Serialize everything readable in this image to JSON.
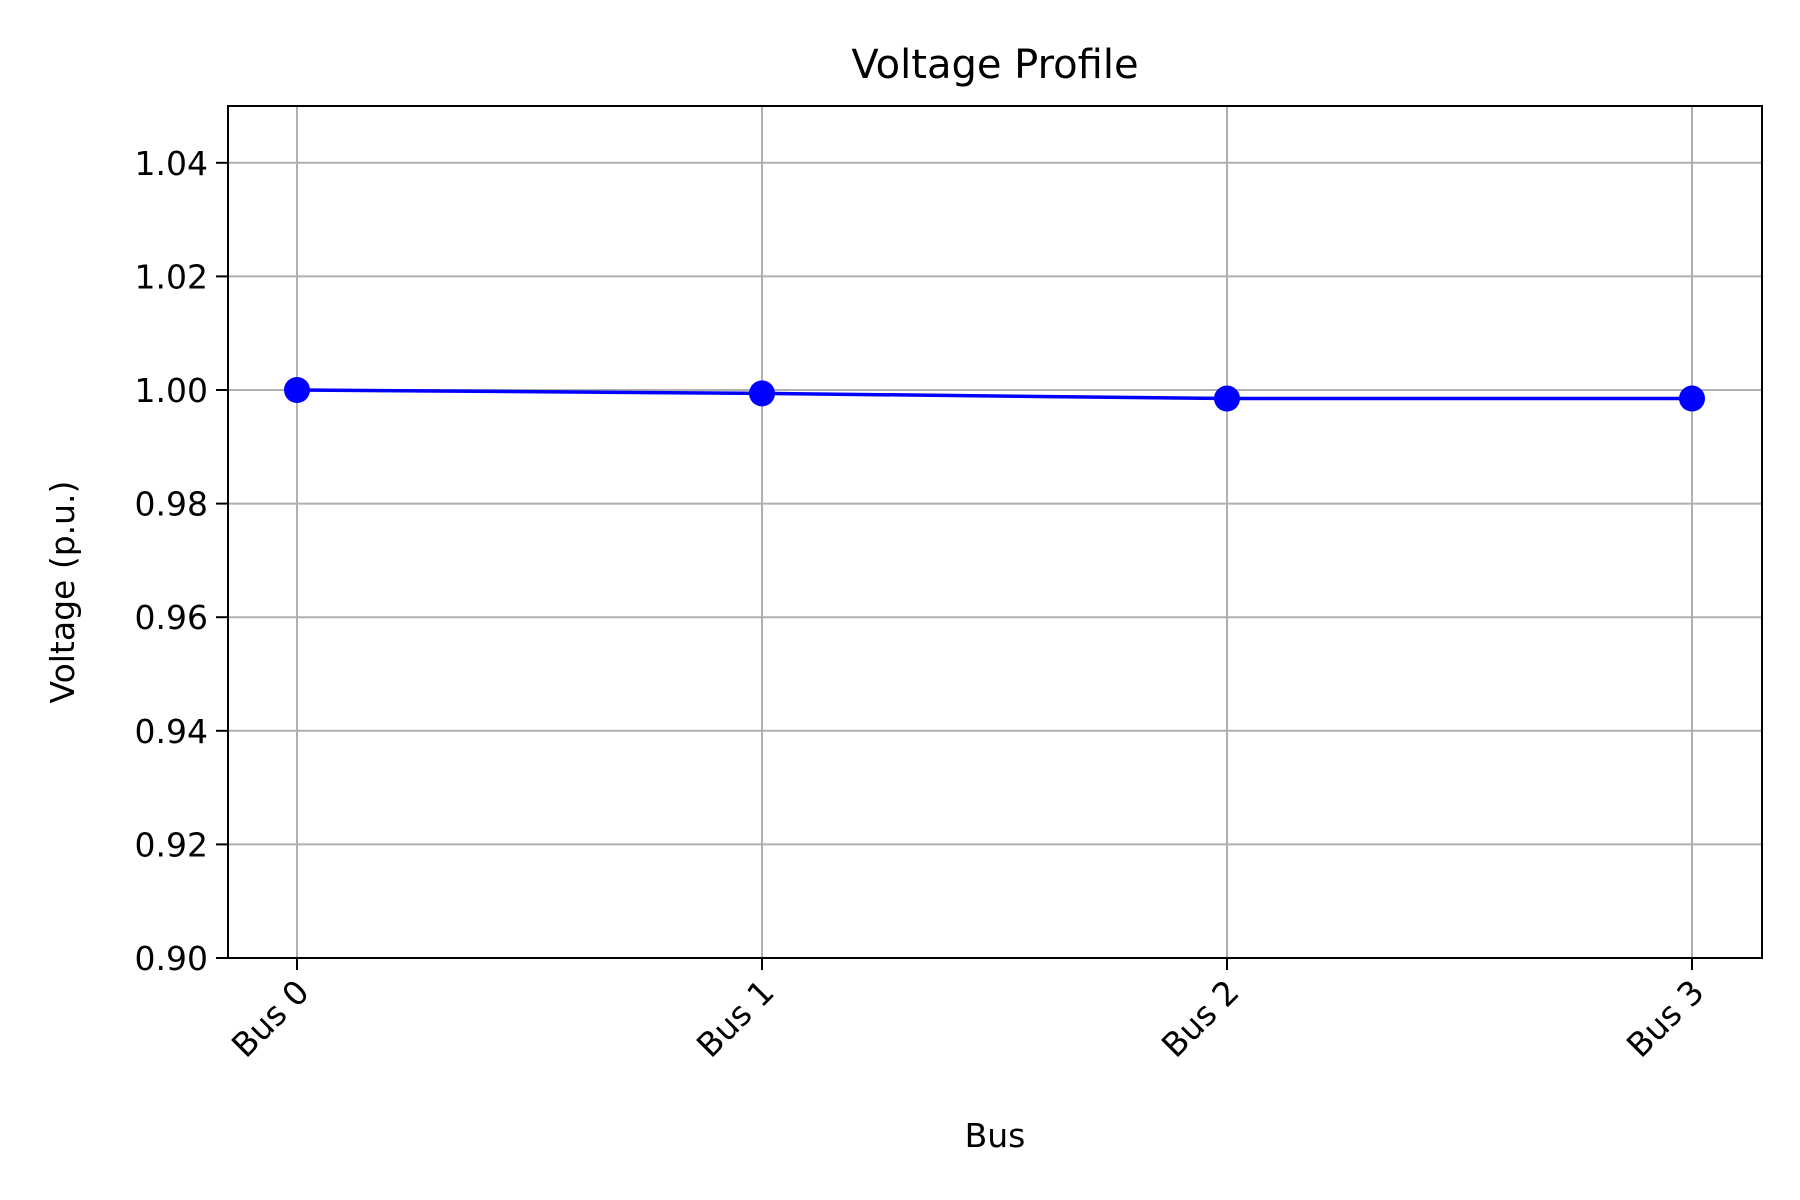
{
  "chart_data": {
    "type": "line",
    "title": "Voltage Profile",
    "xlabel": "Bus",
    "ylabel": "Voltage (p.u.)",
    "categories": [
      "Bus 0",
      "Bus 1",
      "Bus 2",
      "Bus 3"
    ],
    "series": [
      {
        "values": [
          1.0,
          0.9994,
          0.9985,
          0.9985
        ],
        "color": "#0000ff",
        "marker": "circle"
      }
    ],
    "ylim": [
      0.9,
      1.05
    ],
    "yticks": [
      "0.90",
      "0.92",
      "0.94",
      "0.96",
      "0.98",
      "1.00",
      "1.02",
      "1.04"
    ],
    "grid": true,
    "xtick_rotation": 45,
    "colors": {
      "line": "#0000ff",
      "grid": "#b0b0b0",
      "axes": "#000000"
    }
  }
}
